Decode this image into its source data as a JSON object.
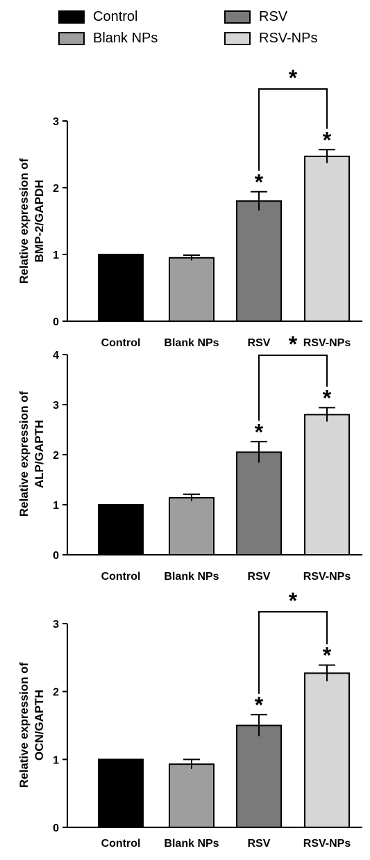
{
  "legend": {
    "items": [
      {
        "label": "Control",
        "color": "#000000"
      },
      {
        "label": "Blank NPs",
        "color": "#9e9e9e"
      },
      {
        "label": "RSV",
        "color": "#7a7a7a"
      },
      {
        "label": "RSV-NPs",
        "color": "#d6d6d6"
      }
    ]
  },
  "chart_data": [
    {
      "type": "bar",
      "categories": [
        "Control",
        "Blank NPs",
        "RSV",
        "RSV-NPs"
      ],
      "values": [
        1.0,
        0.95,
        1.8,
        2.47
      ],
      "errors": [
        0,
        0.04,
        0.14,
        0.1
      ],
      "colors": [
        "#000000",
        "#9e9e9e",
        "#7a7a7a",
        "#d6d6d6"
      ],
      "ylabel": [
        "Relative expression of",
        "BMP-2/GAPDH"
      ],
      "ylim": [
        0,
        3
      ],
      "yticks": [
        "0",
        "1",
        "2",
        "3"
      ],
      "significance": {
        "bars": [
          "RSV",
          "RSV-NPs"
        ],
        "bar_symbol": "*",
        "bracket": [
          "RSV",
          "RSV-NPs"
        ],
        "bracket_symbol": "*"
      }
    },
    {
      "type": "bar",
      "categories": [
        "Control",
        "Blank NPs",
        "RSV",
        "RSV-NPs"
      ],
      "values": [
        1.0,
        1.14,
        2.05,
        2.8
      ],
      "errors": [
        0,
        0.07,
        0.21,
        0.14
      ],
      "colors": [
        "#000000",
        "#9e9e9e",
        "#7a7a7a",
        "#d6d6d6"
      ],
      "ylabel": [
        "Relative expression of",
        "ALP/GAPTH"
      ],
      "ylim": [
        0,
        4
      ],
      "yticks": [
        "0",
        "1",
        "2",
        "3",
        "4"
      ],
      "significance": {
        "bars": [
          "RSV",
          "RSV-NPs"
        ],
        "bar_symbol": "*",
        "bracket": [
          "RSV",
          "RSV-NPs"
        ],
        "bracket_symbol": "*"
      }
    },
    {
      "type": "bar",
      "categories": [
        "Control",
        "Blank NPs",
        "RSV",
        "RSV-NPs"
      ],
      "values": [
        1.0,
        0.93,
        1.5,
        2.27
      ],
      "errors": [
        0,
        0.07,
        0.16,
        0.12
      ],
      "colors": [
        "#000000",
        "#9e9e9e",
        "#7a7a7a",
        "#d6d6d6"
      ],
      "ylabel": [
        "Relative expression of",
        "OCN/GAPTH"
      ],
      "ylim": [
        0,
        3
      ],
      "yticks": [
        "0",
        "1",
        "2",
        "3"
      ],
      "significance": {
        "bars": [
          "RSV",
          "RSV-NPs"
        ],
        "bar_symbol": "*",
        "bracket": [
          "RSV",
          "RSV-NPs"
        ],
        "bracket_symbol": "*"
      }
    }
  ]
}
